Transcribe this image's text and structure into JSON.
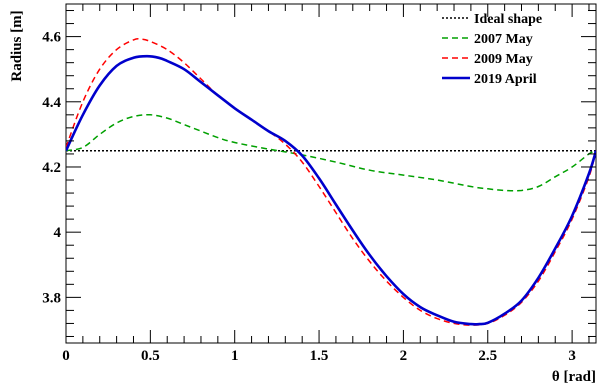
{
  "chart_data": {
    "type": "line",
    "xlabel": "θ [rad]",
    "ylabel": "Radius [m]",
    "xlim": [
      0,
      3.1416
    ],
    "ylim": [
      3.66,
      4.7
    ],
    "legend_position": "top-right",
    "grid": false,
    "x_ticks": [
      0,
      0.5,
      1,
      1.5,
      2,
      2.5,
      3
    ],
    "x_tick_labels": [
      "0",
      "0.5",
      "1",
      "1.5",
      "2",
      "2.5",
      "3"
    ],
    "y_ticks": [
      3.8,
      4,
      4.2,
      4.4,
      4.6
    ],
    "y_tick_labels": [
      "3.8",
      "4",
      "4.2",
      "4.4",
      "4.6"
    ],
    "series": [
      {
        "name": "Ideal shape",
        "color": "#000000",
        "dash": "dotted",
        "x": [
          0,
          3.1416
        ],
        "y": [
          4.25,
          4.25
        ]
      },
      {
        "name": "2007 May",
        "color": "#00a000",
        "dash": "dashed",
        "x": [
          0,
          0.1,
          0.2,
          0.3,
          0.4,
          0.5,
          0.6,
          0.7,
          0.8,
          0.9,
          1.0,
          1.2,
          1.4,
          1.6,
          1.8,
          2.0,
          2.2,
          2.4,
          2.5,
          2.6,
          2.7,
          2.8,
          2.9,
          3.0,
          3.1,
          3.1416
        ],
        "y": [
          4.25,
          4.26,
          4.3,
          4.335,
          4.355,
          4.36,
          4.35,
          4.33,
          4.31,
          4.29,
          4.275,
          4.255,
          4.237,
          4.215,
          4.19,
          4.175,
          4.16,
          4.14,
          4.133,
          4.128,
          4.128,
          4.14,
          4.17,
          4.2,
          4.24,
          4.25
        ]
      },
      {
        "name": "2009 May",
        "color": "#ff0000",
        "dash": "dashed",
        "x": [
          0,
          0.1,
          0.2,
          0.3,
          0.4,
          0.45,
          0.5,
          0.6,
          0.7,
          0.8,
          0.9,
          1.0,
          1.1,
          1.2,
          1.3,
          1.4,
          1.5,
          1.6,
          1.7,
          1.8,
          1.9,
          2.0,
          2.1,
          2.2,
          2.3,
          2.4,
          2.5,
          2.6,
          2.7,
          2.8,
          2.9,
          3.0,
          3.1,
          3.1416
        ],
        "y": [
          4.26,
          4.4,
          4.5,
          4.56,
          4.59,
          4.592,
          4.585,
          4.56,
          4.52,
          4.47,
          4.42,
          4.38,
          4.345,
          4.31,
          4.27,
          4.215,
          4.14,
          4.06,
          3.98,
          3.91,
          3.85,
          3.8,
          3.76,
          3.735,
          3.72,
          3.715,
          3.72,
          3.745,
          3.785,
          3.85,
          3.94,
          4.04,
          4.17,
          4.25
        ]
      },
      {
        "name": "2019 April",
        "color": "#0000cc",
        "dash": "solid",
        "x": [
          0,
          0.1,
          0.2,
          0.3,
          0.4,
          0.48,
          0.55,
          0.6,
          0.7,
          0.8,
          0.9,
          1.0,
          1.1,
          1.2,
          1.3,
          1.4,
          1.5,
          1.6,
          1.7,
          1.8,
          1.9,
          2.0,
          2.1,
          2.2,
          2.3,
          2.4,
          2.45,
          2.5,
          2.6,
          2.7,
          2.8,
          2.9,
          3.0,
          3.1,
          3.1416
        ],
        "y": [
          4.25,
          4.36,
          4.45,
          4.51,
          4.535,
          4.54,
          4.535,
          4.525,
          4.5,
          4.46,
          4.42,
          4.38,
          4.345,
          4.31,
          4.28,
          4.235,
          4.165,
          4.085,
          4.005,
          3.93,
          3.865,
          3.81,
          3.77,
          3.745,
          3.725,
          3.718,
          3.718,
          3.722,
          3.75,
          3.79,
          3.86,
          3.95,
          4.05,
          4.18,
          4.25
        ]
      }
    ]
  }
}
